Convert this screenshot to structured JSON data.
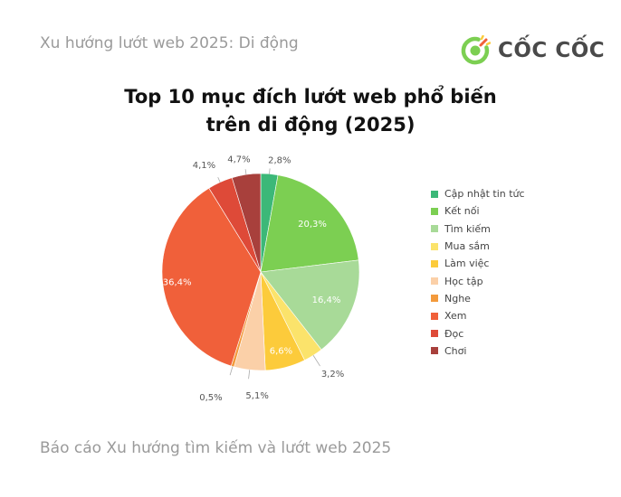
{
  "header": {
    "subtitle": "Xu hướng lướt web 2025: Di động"
  },
  "logo": {
    "text": "CỐC CỐC"
  },
  "chart_data": {
    "type": "pie",
    "title": [
      "Top 10 mục đích lướt web phổ biến",
      "trên di động (2025)"
    ],
    "legend_position": "right",
    "slices": [
      {
        "label": "Cập nhật tin tức",
        "value": 2.8,
        "display": "2,8%",
        "color": "#3cb878"
      },
      {
        "label": "Kết nối",
        "value": 20.3,
        "display": "20,3%",
        "color": "#7ccf52"
      },
      {
        "label": "Tìm kiếm",
        "value": 16.4,
        "display": "16,4%",
        "color": "#a8da98"
      },
      {
        "label": "Mua sắm",
        "value": 3.2,
        "display": "3,2%",
        "color": "#fbe36b"
      },
      {
        "label": "Làm việc",
        "value": 6.6,
        "display": "6,6%",
        "color": "#fccb3b"
      },
      {
        "label": "Học tập",
        "value": 5.1,
        "display": "5,1%",
        "color": "#fbd0a8"
      },
      {
        "label": "Nghe",
        "value": 0.5,
        "display": "0,5%",
        "color": "#f39a3c"
      },
      {
        "label": "Xem",
        "value": 36.4,
        "display": "36,4%",
        "color": "#f0603a"
      },
      {
        "label": "Đọc",
        "value": 4.1,
        "display": "4,1%",
        "color": "#de4a38"
      },
      {
        "label": "Chơi",
        "value": 4.7,
        "display": "4,7%",
        "color": "#a8403c"
      }
    ]
  },
  "footer": {
    "text": "Báo cáo Xu hướng tìm kiếm và lướt web 2025"
  }
}
